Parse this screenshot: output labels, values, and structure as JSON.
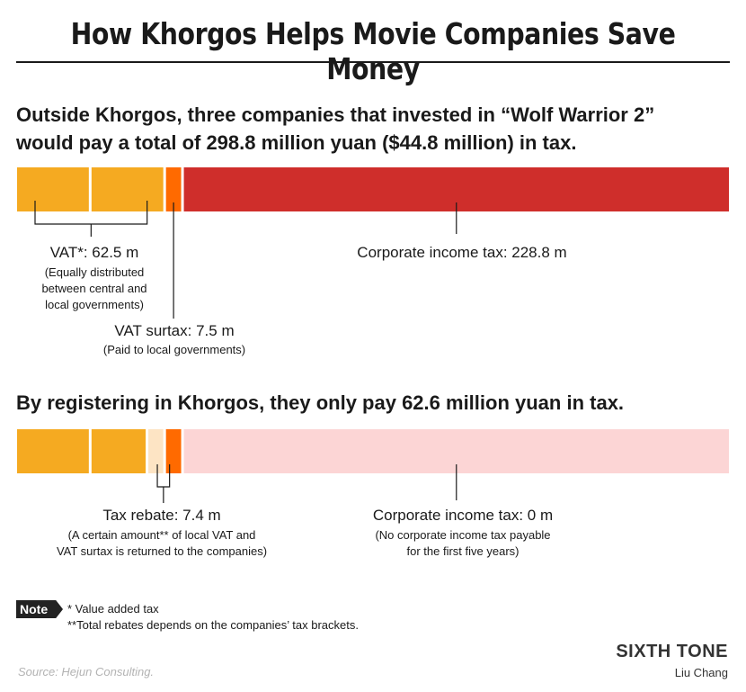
{
  "title": "How Khorgos Helps Movie Companies Save Money",
  "colors": {
    "vat": "#f5aa21",
    "vat_surtax": "#ff6a00",
    "corporate_tax": "#cf2e2b",
    "rebate": "#fde4c4",
    "corporate_tax_zero": "#fcd5d5",
    "divider": "#ffffff",
    "leader": "#1a1a1a"
  },
  "chart_data": [
    {
      "type": "bar",
      "orientation": "horizontal-stacked",
      "headline": "Outside Khorgos, three companies that invested in “Wolf Warrior 2” would pay a total of 298.8 million yuan ($44.8 million) in tax.",
      "total": 298.8,
      "segments": [
        {
          "name": "VAT",
          "value": 31.25,
          "color_key": "vat"
        },
        {
          "name": "VAT",
          "value": 31.25,
          "color_key": "vat"
        },
        {
          "name": "VAT surtax",
          "value": 7.5,
          "color_key": "vat_surtax"
        },
        {
          "name": "Corporate income tax",
          "value": 228.8,
          "color_key": "corporate_tax"
        }
      ],
      "labels": [
        {
          "title": "VAT*: 62.5 m",
          "note": [
            "(Equally distributed",
            "between central and",
            "local governments)"
          ]
        },
        {
          "title": "VAT surtax: 7.5 m",
          "note": [
            "(Paid to local governments)"
          ]
        },
        {
          "title": "Corporate income tax: 228.8 m",
          "note": []
        }
      ]
    },
    {
      "type": "bar",
      "orientation": "horizontal-stacked",
      "headline": "By registering in Khorgos, they only pay 62.6 million yuan in tax.",
      "total": 62.6,
      "segments": [
        {
          "name": "VAT",
          "value": 31.25,
          "color_key": "vat"
        },
        {
          "name": "VAT",
          "value": 23.85,
          "color_key": "vat"
        },
        {
          "name": "Tax rebate",
          "value": 7.4,
          "color_key": "rebate"
        },
        {
          "name": "VAT surtax",
          "value": 7.5,
          "color_key": "vat_surtax"
        },
        {
          "name": "Corporate income tax",
          "value": 0,
          "color_key": "corporate_tax_zero"
        }
      ],
      "labels": [
        {
          "title": "Tax rebate: 7.4 m",
          "note": [
            "(A certain amount** of local VAT and",
            "VAT surtax is returned to the companies)"
          ]
        },
        {
          "title": "Corporate income tax: 0 m",
          "note": [
            "(No corporate income tax payable",
            "for the first five years)"
          ]
        }
      ]
    }
  ],
  "note": {
    "tag": "Note",
    "lines": [
      "* Value added tax",
      "**Total rebates depends on the companies’ tax brackets."
    ]
  },
  "source": "Source: Hejun Consulting.",
  "brand": "SIXTH TONE",
  "author": "Liu Chang"
}
